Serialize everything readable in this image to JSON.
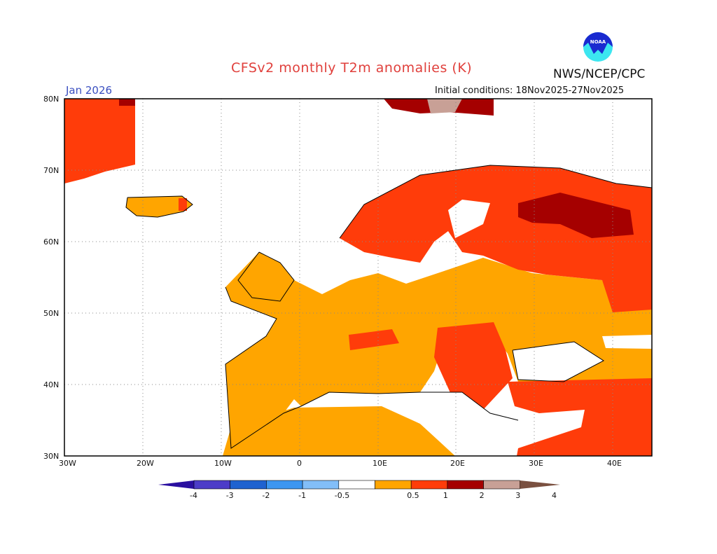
{
  "header": {
    "title": "CFSv2 monthly T2m anomalies (K)",
    "credit": "NWS/NCEP/CPC",
    "logo_text": "NOAA",
    "forecast_month": "Jan 2026",
    "initial_conditions": "Initial conditions: 18Nov2025-27Nov2025"
  },
  "map": {
    "region": "Europe",
    "lat_labels": [
      "80N",
      "70N",
      "60N",
      "50N",
      "40N",
      "30N"
    ],
    "lon_labels": [
      "30W",
      "20W",
      "10W",
      "0",
      "10E",
      "20E",
      "30E",
      "40E"
    ],
    "grid": "dotted"
  },
  "colorbar": {
    "labels": [
      "-4",
      "-3",
      "-2",
      "-1",
      "-0.5",
      "0.5",
      "1",
      "2",
      "3",
      "4"
    ],
    "colors": [
      "#2a0fa0",
      "#4c3cc8",
      "#1e62d0",
      "#3c96f0",
      "#82bef8",
      "#ffffff",
      "#ffa500",
      "#ff3c0a",
      "#a50000",
      "#c8a096",
      "#7a5040"
    ]
  }
}
